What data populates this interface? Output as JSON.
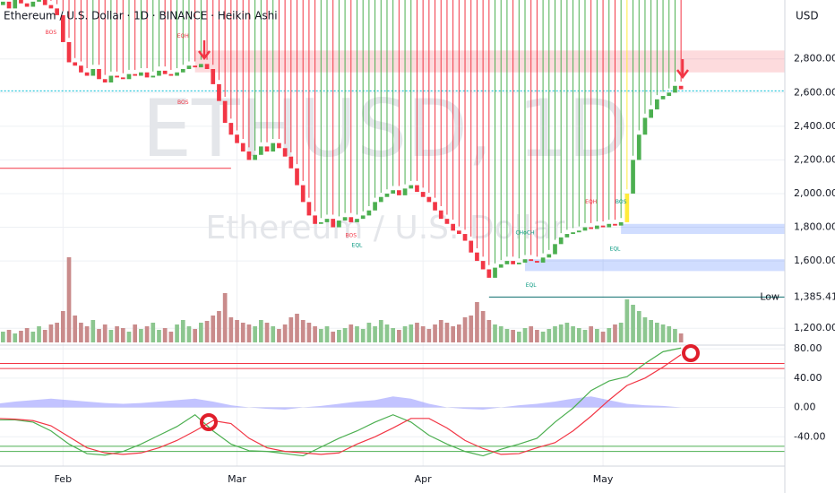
{
  "chart_data": {
    "type": "candlestick",
    "title": "Ethereum / U.S. Dollar · 1D · BINANCE · Heikin Ashi",
    "currency": "USD",
    "watermark": "ETHUSD, 1D",
    "watermark_sub": "Ethereum / U.S. Dollar",
    "up_color": "#4caf50",
    "down_color": "#f23645",
    "highlight_color": "#ffeb3b",
    "highlight_index": 105,
    "open": [
      3100,
      3120,
      3140,
      3100,
      3150,
      3130,
      3110,
      3140,
      3150,
      3120,
      3100,
      3060,
      2900,
      2780,
      2760,
      2720,
      2700,
      2740,
      2680,
      2660,
      2700,
      2690,
      2680,
      2710,
      2700,
      2720,
      2690,
      2700,
      2730,
      2710,
      2700,
      2720,
      2740,
      2760,
      2750,
      2770,
      2740,
      2650,
      2550,
      2420,
      2350,
      2300,
      2250,
      2200,
      2230,
      2280,
      2250,
      2300,
      2270,
      2220,
      2150,
      2050,
      1950,
      1870,
      1820,
      1830,
      1850,
      1800,
      1840,
      1860,
      1830,
      1850,
      1870,
      1900,
      1950,
      1980,
      2000,
      2020,
      1990,
      2030,
      2050,
      2010,
      1980,
      1950,
      1900,
      1850,
      1820,
      1780,
      1760,
      1720,
      1650,
      1600,
      1550,
      1500,
      1560,
      1580,
      1600,
      1580,
      1590,
      1610,
      1600,
      1590,
      1620,
      1640,
      1700,
      1740,
      1760,
      1770,
      1780,
      1800,
      1790,
      1810,
      1800,
      1820,
      1810,
      1830,
      2000,
      2200,
      2350,
      2450,
      2500,
      2560,
      2580,
      2600,
      2640
    ],
    "high": [
      3145,
      3165,
      3165,
      3175,
      3175,
      3155,
      3165,
      3175,
      3175,
      3145,
      3125,
      3085,
      2925,
      2805,
      2785,
      2745,
      2765,
      2765,
      2705,
      2725,
      2725,
      2715,
      2735,
      2735,
      2745,
      2745,
      2725,
      2755,
      2755,
      2735,
      2745,
      2765,
      2785,
      2785,
      2795,
      2795,
      2765,
      2675,
      2575,
      2445,
      2375,
      2325,
      2275,
      2255,
      2305,
      2305,
      2325,
      2325,
      2295,
      2245,
      2175,
      2075,
      1975,
      1895,
      1855,
      1875,
      1875,
      1865,
      1885,
      1885,
      1875,
      1895,
      1925,
      1975,
      2005,
      2025,
      2045,
      2045,
      2055,
      2075,
      2075,
      2035,
      2005,
      1975,
      1925,
      1875,
      1845,
      1805,
      1785,
      1745,
      1675,
      1625,
      1575,
      1585,
      1605,
      1625,
      1625,
      1615,
      1635,
      1635,
      1625,
      1645,
      1665,
      1725,
      1765,
      1785,
      1795,
      1805,
      1825,
      1825,
      1835,
      1835,
      1845,
      1845,
      1855,
      2025,
      2225,
      2375,
      2475,
      2525,
      2585,
      2605,
      2625,
      2665,
      2665
    ],
    "low": {
      "label": "Low",
      "value": 1385.41,
      "value_label": "1,385.41",
      "start": 82,
      "color": "#0b6e6e"
    },
    "close": [
      3120,
      3140,
      3100,
      3150,
      3130,
      3110,
      3140,
      3150,
      3120,
      3100,
      3060,
      2900,
      2780,
      2760,
      2720,
      2700,
      2740,
      2680,
      2660,
      2700,
      2690,
      2680,
      2710,
      2700,
      2720,
      2690,
      2700,
      2730,
      2710,
      2700,
      2720,
      2740,
      2760,
      2750,
      2770,
      2740,
      2650,
      2550,
      2420,
      2350,
      2300,
      2250,
      2200,
      2230,
      2280,
      2250,
      2300,
      2270,
      2220,
      2150,
      2050,
      1950,
      1870,
      1820,
      1830,
      1850,
      1800,
      1840,
      1860,
      1830,
      1850,
      1870,
      1900,
      1950,
      1980,
      2000,
      2020,
      1990,
      2030,
      2050,
      2010,
      1980,
      1950,
      1900,
      1850,
      1820,
      1780,
      1760,
      1720,
      1650,
      1600,
      1550,
      1500,
      1560,
      1580,
      1600,
      1580,
      1590,
      1610,
      1600,
      1590,
      1620,
      1640,
      1700,
      1740,
      1760,
      1770,
      1780,
      1800,
      1790,
      1810,
      1800,
      1820,
      1810,
      1830,
      2000,
      2200,
      2350,
      2450,
      2500,
      2560,
      2580,
      2600,
      2640,
      2620
    ],
    "xlim": [
      0.5,
      131.3
    ],
    "xticks": [
      {
        "value": 11,
        "label": "Feb"
      },
      {
        "value": 40,
        "label": "Mar"
      },
      {
        "value": 71,
        "label": "Apr"
      },
      {
        "value": 101,
        "label": "May"
      }
    ],
    "ylim": [
      1100,
      3150
    ],
    "yticks": [
      {
        "value": 1200,
        "label": "1,200.00"
      },
      {
        "value": 1600,
        "label": "1,600.00"
      },
      {
        "value": 1800,
        "label": "1,800.00"
      },
      {
        "value": 2000,
        "label": "2,000.00"
      },
      {
        "value": 2200,
        "label": "2,200.00"
      },
      {
        "value": 2400,
        "label": "2,400.00"
      },
      {
        "value": 2600,
        "label": "2,600.00"
      },
      {
        "value": 2800,
        "label": "2,800.00"
      }
    ],
    "grid": true,
    "volume": {
      "ylim": [
        0,
        100
      ],
      "up_color": "#8cc68f",
      "down_color": "#c98b8b",
      "values": [
        15,
        12,
        14,
        10,
        13,
        16,
        12,
        18,
        14,
        20,
        22,
        35,
        95,
        30,
        22,
        18,
        25,
        15,
        20,
        14,
        18,
        16,
        12,
        20,
        15,
        18,
        22,
        14,
        16,
        12,
        20,
        25,
        18,
        15,
        22,
        24,
        30,
        35,
        55,
        28,
        25,
        22,
        20,
        18,
        25,
        22,
        18,
        15,
        20,
        28,
        32,
        25,
        22,
        18,
        15,
        18,
        12,
        14,
        16,
        20,
        18,
        15,
        22,
        18,
        25,
        20,
        16,
        14,
        18,
        20,
        22,
        18,
        15,
        20,
        25,
        22,
        18,
        20,
        28,
        30,
        45,
        35,
        25,
        20,
        18,
        15,
        14,
        12,
        16,
        18,
        14,
        12,
        15,
        18,
        20,
        22,
        18,
        16,
        14,
        18,
        15,
        12,
        16,
        20,
        22,
        48,
        42,
        35,
        28,
        25,
        22,
        20,
        18,
        15,
        10
      ]
    },
    "zones": [
      {
        "from": 2720,
        "to": 2850,
        "start": 33,
        "color": "rgba(242,54,69,0.18)"
      },
      {
        "from": 1760,
        "to": 1820,
        "start": 104,
        "color": "rgba(41,98,255,0.22)"
      },
      {
        "from": 1540,
        "to": 1610,
        "start": 88,
        "color": "rgba(41,98,255,0.22)"
      }
    ],
    "lines": [
      {
        "value": 2150,
        "start": 0,
        "end": 39,
        "color": "#f23645",
        "dash": false
      },
      {
        "value": 2610,
        "start": 0,
        "end": 131.3,
        "color": "#00bcd4",
        "dash": true
      }
    ],
    "annotations": [
      {
        "text": "BOS",
        "index": 9,
        "price": 2955,
        "color": "#f23645"
      },
      {
        "text": "EQH",
        "index": 31,
        "price": 2935,
        "color": "#f23645"
      },
      {
        "text": "BOS",
        "index": 31,
        "price": 2540,
        "color": "#f23645"
      },
      {
        "text": "BOS",
        "index": 59,
        "price": 1750,
        "color": "#f23645"
      },
      {
        "text": "EQL",
        "index": 60,
        "price": 1690,
        "color": "#089981"
      },
      {
        "text": "CHoCH",
        "index": 88,
        "price": 1765,
        "color": "#089981"
      },
      {
        "text": "EQL",
        "index": 89,
        "price": 1455,
        "color": "#089981"
      },
      {
        "text": "EQH",
        "index": 99,
        "price": 1950,
        "color": "#f23645"
      },
      {
        "text": "BOS",
        "index": 104,
        "price": 1950,
        "color": "#089981"
      },
      {
        "text": "EQL",
        "index": 103,
        "price": 1670,
        "color": "#089981"
      }
    ],
    "oscillator": {
      "x": [
        0,
        3,
        6,
        9,
        12,
        15,
        18,
        21,
        24,
        27,
        30,
        33,
        36,
        39,
        42,
        45,
        48,
        51,
        54,
        57,
        60,
        63,
        66,
        69,
        72,
        75,
        78,
        81,
        84,
        87,
        90,
        93,
        96,
        99,
        102,
        105,
        108,
        111,
        114
      ],
      "ylim": [
        -80,
        85
      ],
      "yticks": [
        {
          "value": 80,
          "label": "80.00"
        },
        {
          "value": 40,
          "label": "40.00"
        },
        {
          "value": 0,
          "label": "0.00"
        },
        {
          "value": -40,
          "label": "-40.00"
        }
      ],
      "area": {
        "color": "rgba(120,123,255,0.45)",
        "values": [
          5,
          8,
          10,
          12,
          10,
          8,
          6,
          5,
          6,
          8,
          10,
          12,
          8,
          3,
          0,
          -2,
          -3,
          0,
          2,
          5,
          8,
          10,
          15,
          12,
          5,
          0,
          -2,
          -3,
          0,
          3,
          5,
          8,
          12,
          15,
          10,
          5,
          3,
          2,
          0
        ]
      },
      "series": [
        {
          "color": "#4caf50",
          "values": [
            -17,
            -17,
            -20,
            -32,
            -50,
            -63,
            -65,
            -60,
            -50,
            -38,
            -26,
            -10,
            -32,
            -50,
            -59,
            -60,
            -63,
            -66,
            -54,
            -42,
            -32,
            -20,
            -10,
            -20,
            -38,
            -50,
            -60,
            -66,
            -57,
            -50,
            -42,
            -20,
            -1,
            23,
            36,
            42,
            60,
            76,
            81
          ]
        },
        {
          "color": "#f23645",
          "values": [
            -15,
            -16,
            -18,
            -25,
            -40,
            -55,
            -62,
            -64,
            -62,
            -55,
            -45,
            -32,
            -18,
            -22,
            -42,
            -55,
            -60,
            -62,
            -64,
            -62,
            -50,
            -40,
            -28,
            -15,
            -15,
            -28,
            -45,
            -56,
            -64,
            -63,
            -55,
            -48,
            -32,
            -12,
            10,
            30,
            40,
            55,
            72
          ]
        }
      ],
      "levels": [
        {
          "value": 60,
          "color": "#f23645"
        },
        {
          "value": 53,
          "color": "#f23645"
        },
        {
          "value": -53,
          "color": "#4caf50"
        },
        {
          "value": -60,
          "color": "#4caf50"
        }
      ]
    }
  }
}
